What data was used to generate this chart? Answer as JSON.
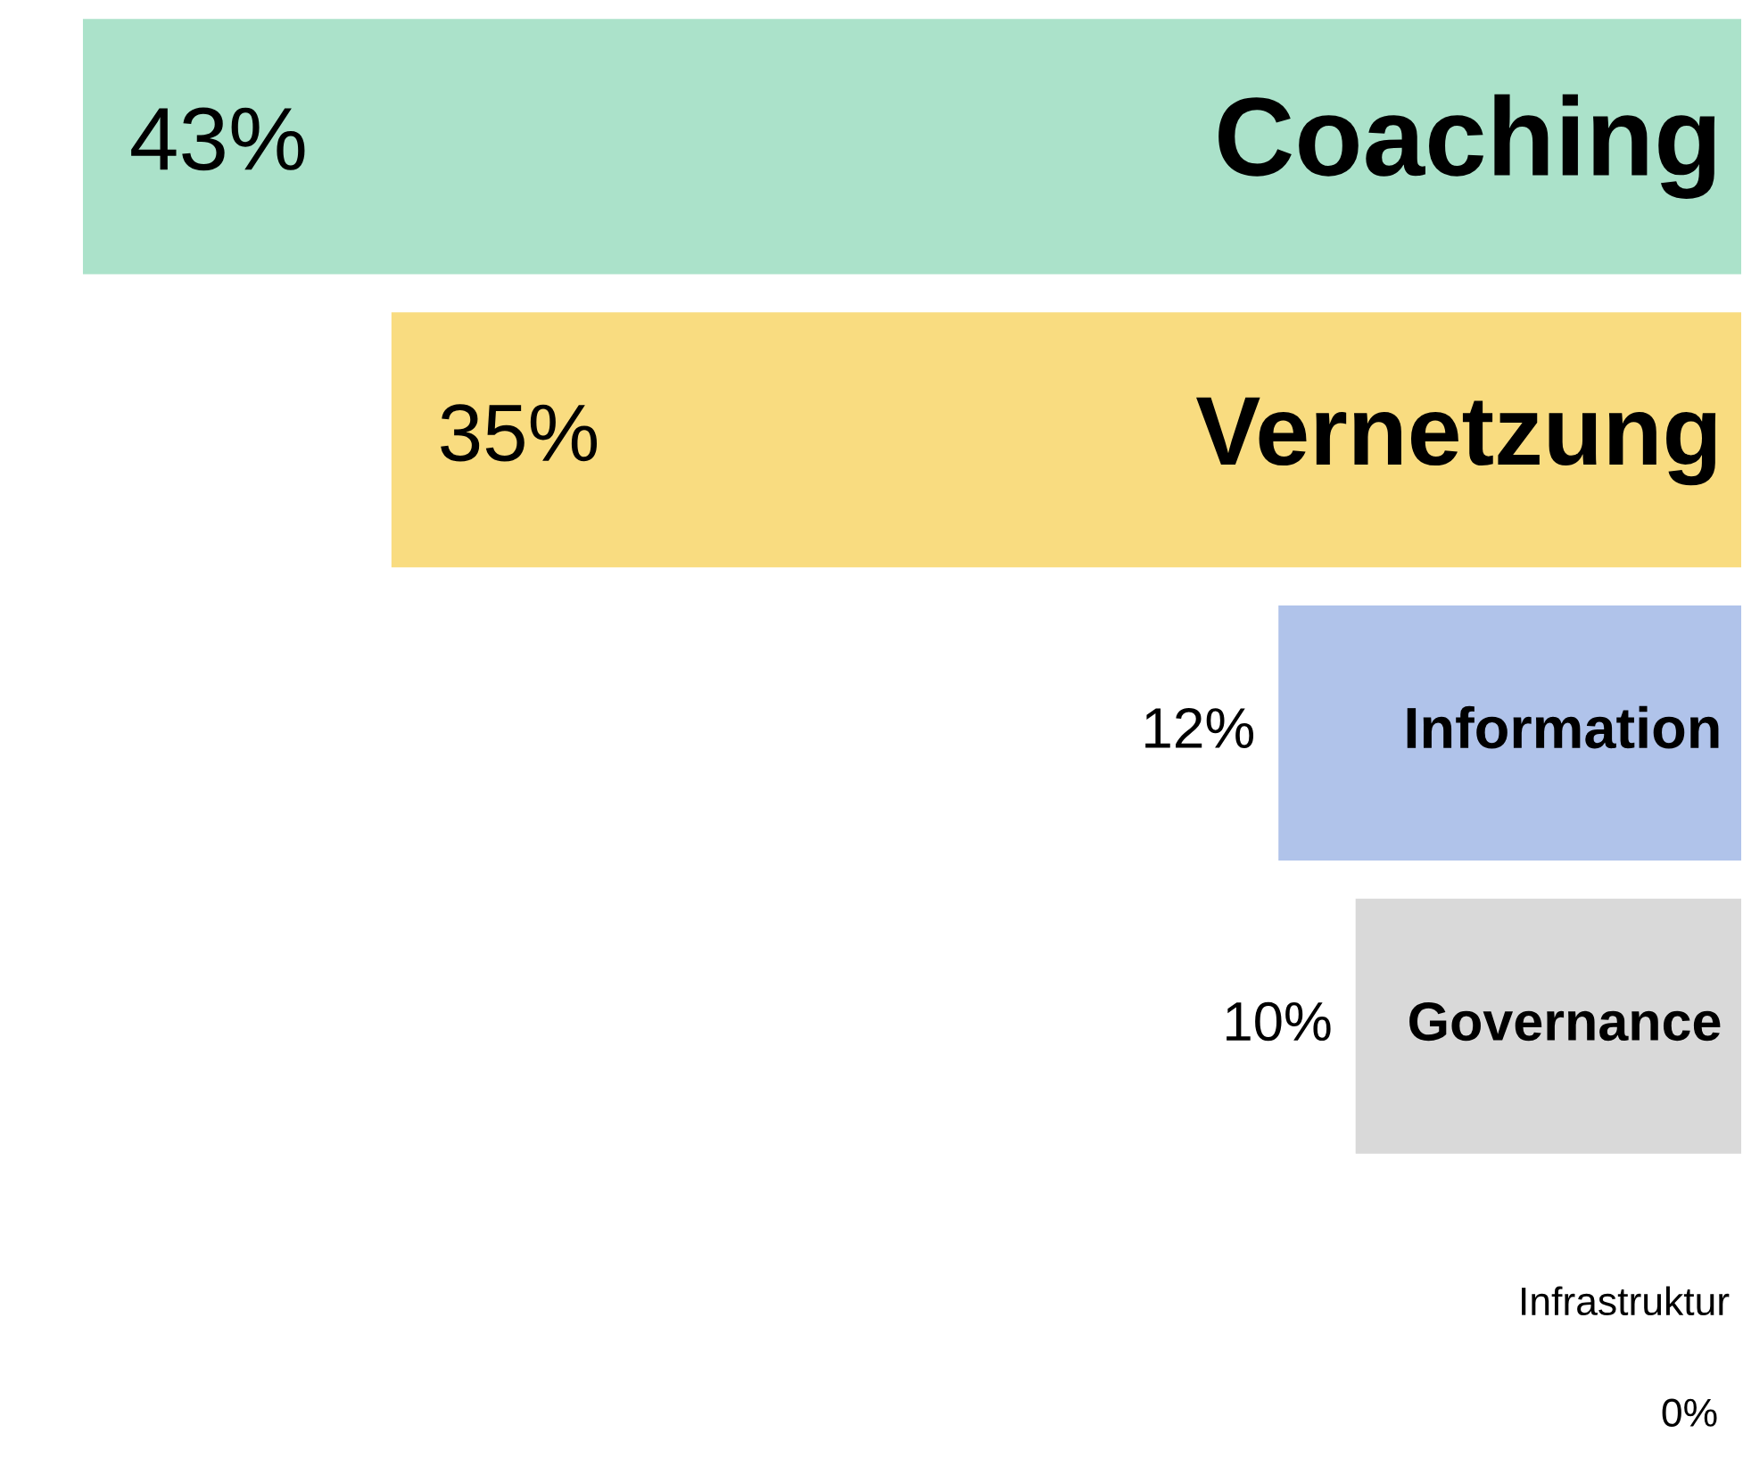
{
  "chart_data": {
    "type": "bar",
    "orientation": "horizontal",
    "categories": [
      "Coaching",
      "Vernetzung",
      "Information",
      "Governance",
      "Infrastruktur"
    ],
    "values": [
      43,
      35,
      12,
      10,
      0
    ],
    "colors": [
      "#abe2ca",
      "#f9dc80",
      "#b0c3ea",
      "#d9d9d9",
      "#f08080"
    ],
    "value_labels": [
      "43%",
      "35%",
      "12%",
      "10%",
      "0%"
    ]
  }
}
